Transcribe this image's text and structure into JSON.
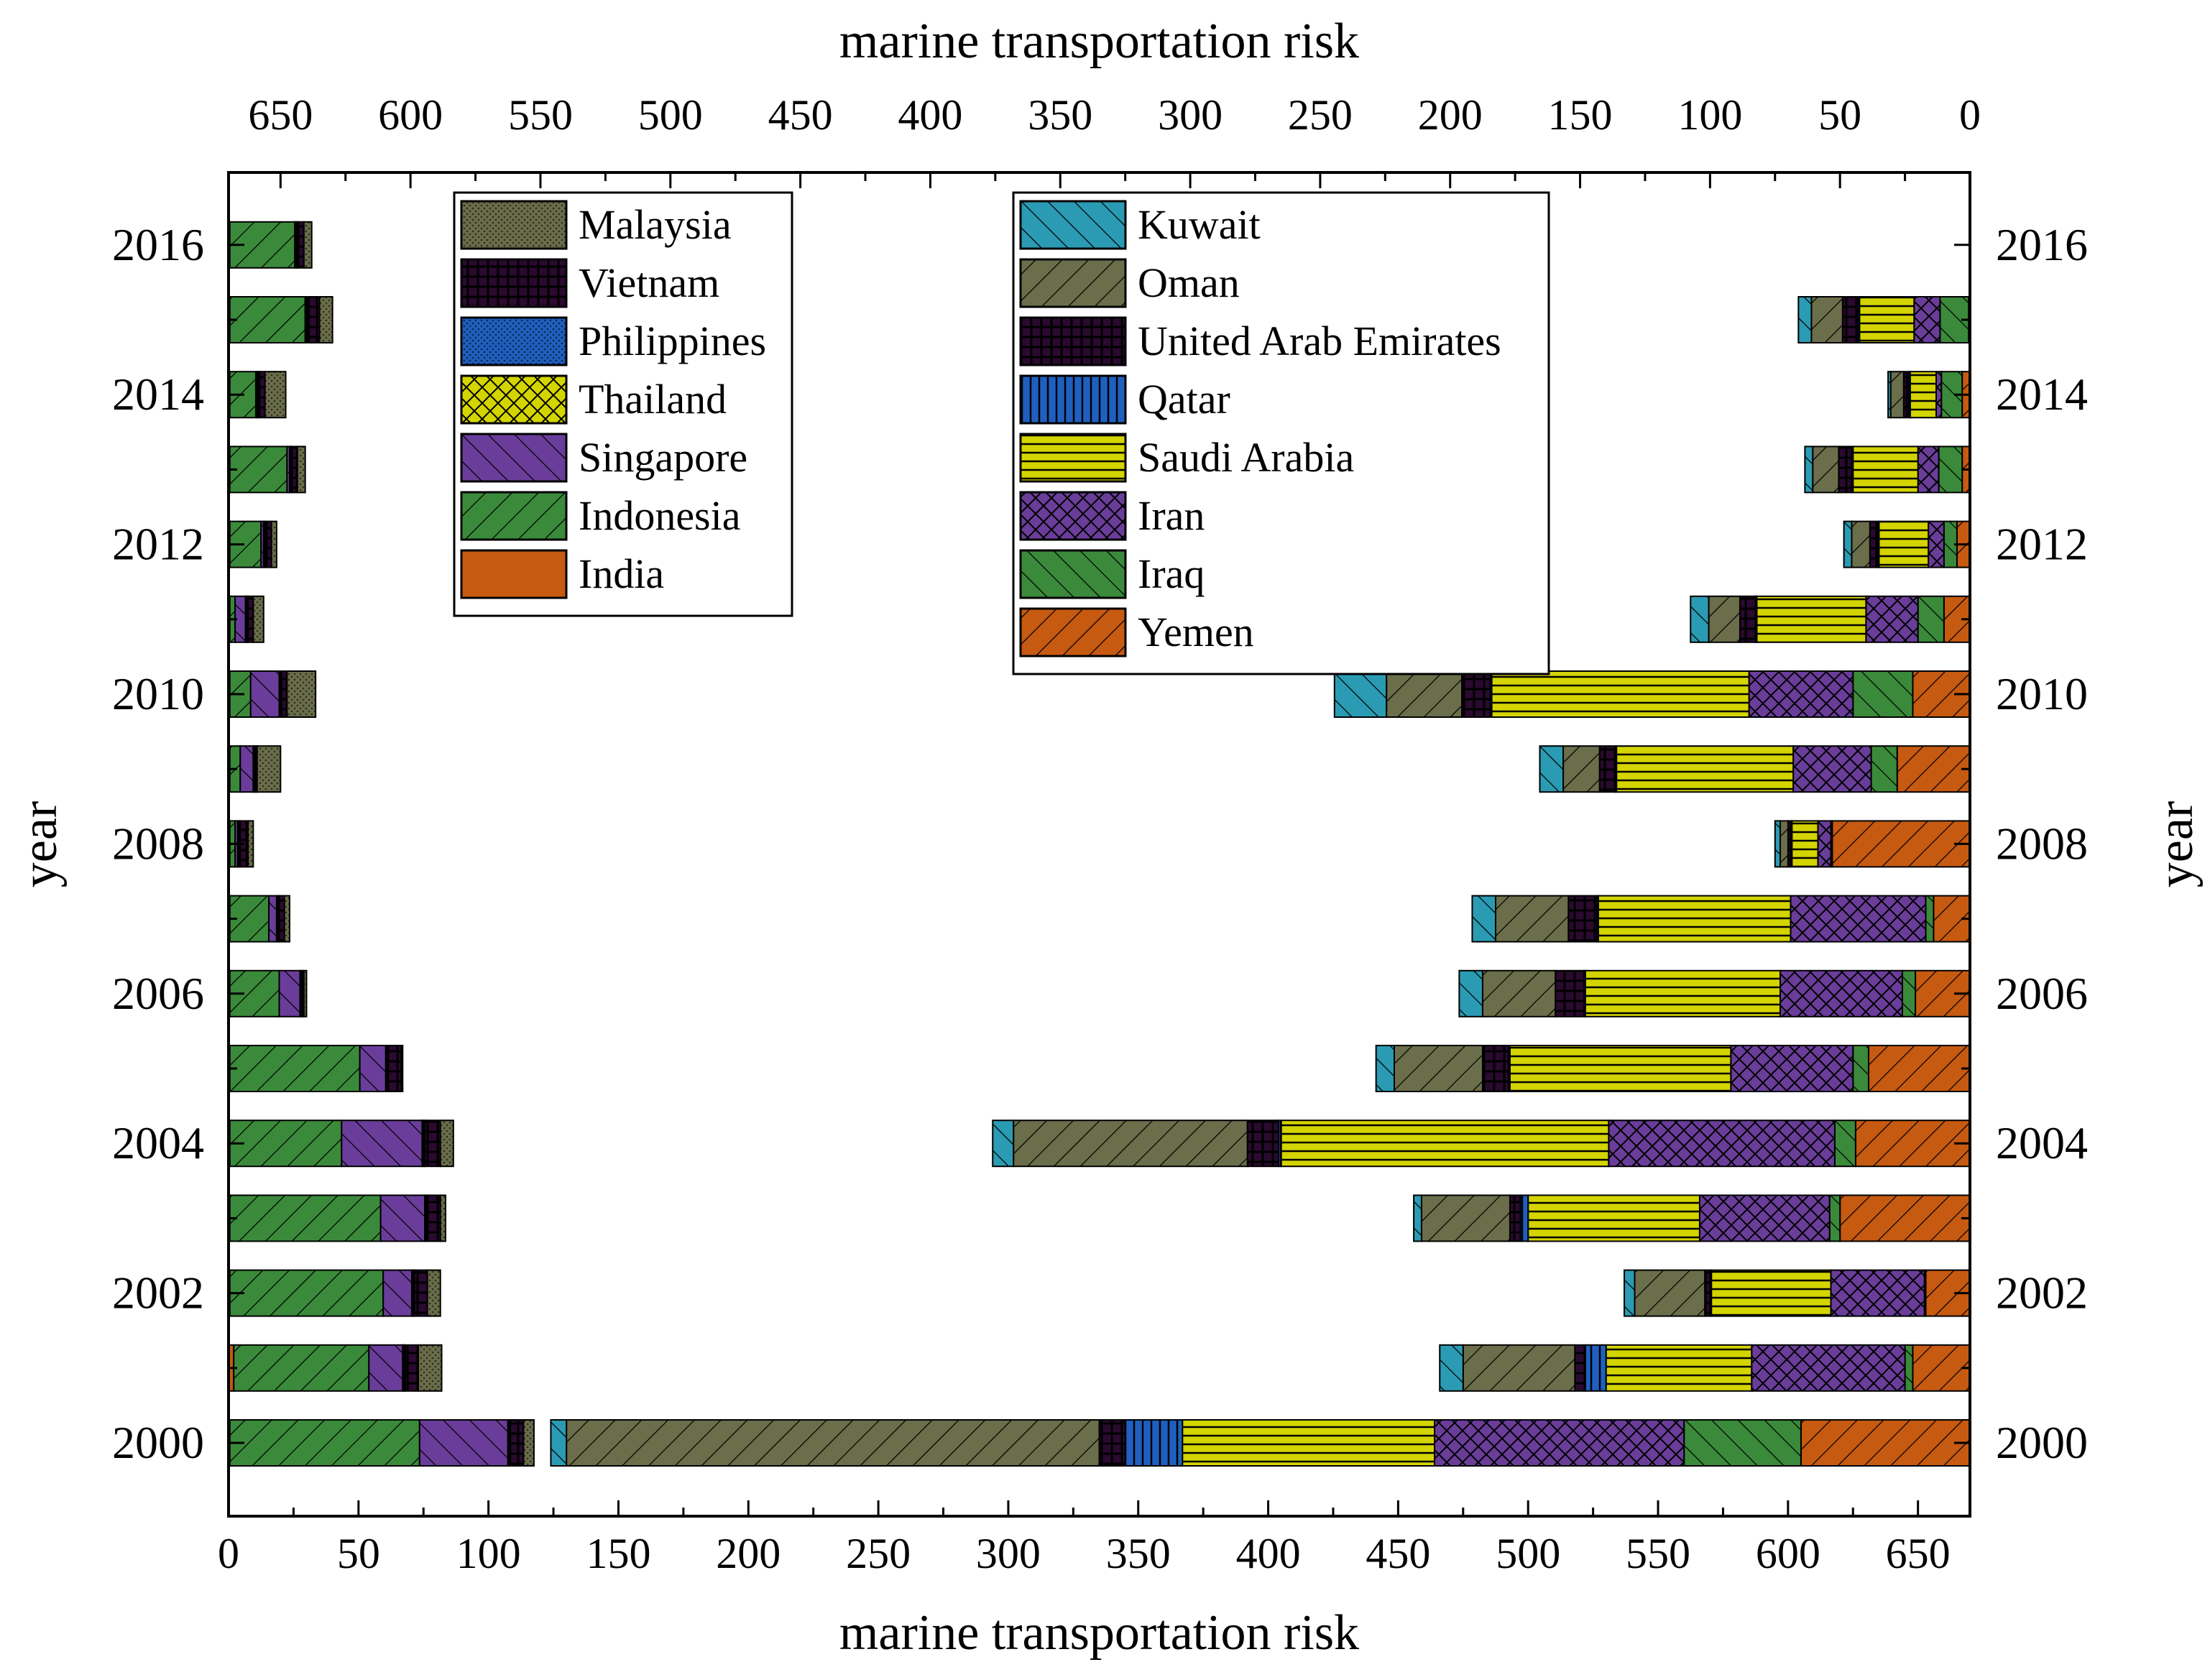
{
  "chart_data": {
    "type": "bar",
    "orientation": "horizontal-stacked-diverging",
    "xlabel_bottom": "marine transportation risk",
    "xlabel_top": "marine transportation risk",
    "ylabel_left": "year",
    "ylabel_right": "year",
    "xlim_bottom": [
      0,
      670
    ],
    "xlim_top": [
      670,
      0
    ],
    "bottom_ticks": [
      "0",
      "50",
      "100",
      "150",
      "200",
      "250",
      "300",
      "350",
      "400",
      "450",
      "500",
      "550",
      "600",
      "650"
    ],
    "top_ticks": [
      "650",
      "600",
      "550",
      "500",
      "450",
      "400",
      "350",
      "300",
      "250",
      "200",
      "150",
      "100",
      "50",
      "0"
    ],
    "years": [
      "2000",
      "2001",
      "2002",
      "2003",
      "2004",
      "2005",
      "2006",
      "2007",
      "2008",
      "2009",
      "2010",
      "2011",
      "2012",
      "2013",
      "2014",
      "2015",
      "2016"
    ],
    "year_tick_labels": [
      "2000",
      "2002",
      "2004",
      "2006",
      "2008",
      "2010",
      "2012",
      "2014",
      "2016"
    ],
    "grid": false,
    "left_series": [
      {
        "name": "India",
        "color": "#c65a11",
        "values": [
          0.5,
          2,
          0.5,
          0.5,
          0.5,
          0.5,
          0.5,
          0.5,
          0.5,
          0.5,
          0.5,
          0.5,
          0.5,
          0.5,
          0.5,
          0.5,
          0.5
        ]
      },
      {
        "name": "Indonesia",
        "color": "#3b8a3b",
        "values": [
          73,
          52,
          59,
          58,
          43,
          50,
          19,
          15,
          2,
          4,
          8,
          2,
          12,
          22,
          10,
          29,
          25
        ]
      },
      {
        "name": "Singapore",
        "color": "#6a3d9a",
        "values": [
          34,
          13,
          11,
          17,
          31,
          10,
          8,
          3,
          1,
          5,
          11,
          4,
          1,
          1,
          0.5,
          0.5,
          0.5
        ]
      },
      {
        "name": "Thailand",
        "color": "#d4d400",
        "values": [
          0.5,
          0.5,
          0.5,
          0.5,
          0.5,
          0.5,
          0.5,
          0.5,
          0.5,
          0.5,
          0.5,
          0.5,
          0.5,
          0.5,
          0.5,
          0.5,
          0.5
        ]
      },
      {
        "name": "Philippines",
        "color": "#1f5fbf",
        "values": [
          0.5,
          0.5,
          0.5,
          0.5,
          0.5,
          0.5,
          0.5,
          0.5,
          0.5,
          0.5,
          0.5,
          0.5,
          0.5,
          0.5,
          0.5,
          0.5,
          0.5
        ]
      },
      {
        "name": "Vietnam",
        "color": "#2a0a2e",
        "values": [
          5,
          5,
          5,
          5,
          6,
          5,
          0.5,
          2,
          3,
          0.5,
          2,
          2,
          2,
          2,
          2,
          4,
          2
        ]
      },
      {
        "name": "Malaysia",
        "color": "#6b6e4a",
        "values": [
          4,
          9,
          5,
          2,
          5,
          0.5,
          1,
          2,
          2,
          9,
          11,
          4,
          2,
          3,
          8,
          5,
          3
        ]
      }
    ],
    "right_series": [
      {
        "name": "Yemen",
        "color": "#c65a11",
        "values": [
          65,
          22,
          17,
          50,
          44,
          39,
          21,
          14,
          53,
          28,
          22,
          10,
          5,
          3,
          3,
          0.5,
          0
        ]
      },
      {
        "name": "Iraq",
        "color": "#3b8a3b",
        "values": [
          45,
          3,
          0.5,
          4,
          8,
          6,
          5,
          3,
          0.5,
          10,
          23,
          10,
          5,
          9,
          8,
          11,
          0
        ]
      },
      {
        "name": "Iran",
        "color": "#6a3d9a",
        "values": [
          96,
          59,
          36,
          50,
          87,
          47,
          47,
          52,
          5,
          30,
          40,
          20,
          6,
          8,
          2,
          10,
          0
        ]
      },
      {
        "name": "Saudi Arabia",
        "color": "#d4d400",
        "values": [
          97,
          56,
          46,
          66,
          126,
          85,
          75,
          74,
          10,
          68,
          99,
          42,
          19,
          25,
          10,
          21,
          0
        ]
      },
      {
        "name": "Qatar",
        "color": "#1f5fbf",
        "values": [
          22,
          8,
          0.5,
          3,
          1,
          0.5,
          0.5,
          0.5,
          0.5,
          0.5,
          0.5,
          0.5,
          0.5,
          0.5,
          0.5,
          0.5,
          0
        ]
      },
      {
        "name": "United Arab Emirates",
        "color": "#2a0a2e",
        "values": [
          10,
          4,
          2,
          4,
          12,
          10,
          11,
          11,
          1,
          6,
          11,
          6,
          3,
          5,
          2,
          6,
          0
        ]
      },
      {
        "name": "Oman",
        "color": "#6b6e4a",
        "values": [
          205,
          43,
          27,
          34,
          90,
          34,
          28,
          28,
          3,
          14,
          29,
          12,
          7,
          10,
          5,
          12,
          0
        ]
      },
      {
        "name": "Kuwait",
        "color": "#2b9bb3",
        "values": [
          6,
          9,
          4,
          3,
          8,
          7,
          9,
          9,
          2,
          9,
          20,
          7,
          3,
          3,
          1,
          5,
          0
        ]
      }
    ],
    "legends": [
      {
        "placement": "top-left",
        "entries": [
          "Malaysia",
          "Vietnam",
          "Philippines",
          "Thailand",
          "Singapore",
          "Indonesia",
          "India"
        ]
      },
      {
        "placement": "top-center",
        "entries": [
          "Kuwait",
          "Oman",
          "United Arab Emirates",
          "Qatar",
          "Saudi Arabia",
          "Iran",
          "Iraq",
          "Yemen"
        ]
      }
    ]
  }
}
